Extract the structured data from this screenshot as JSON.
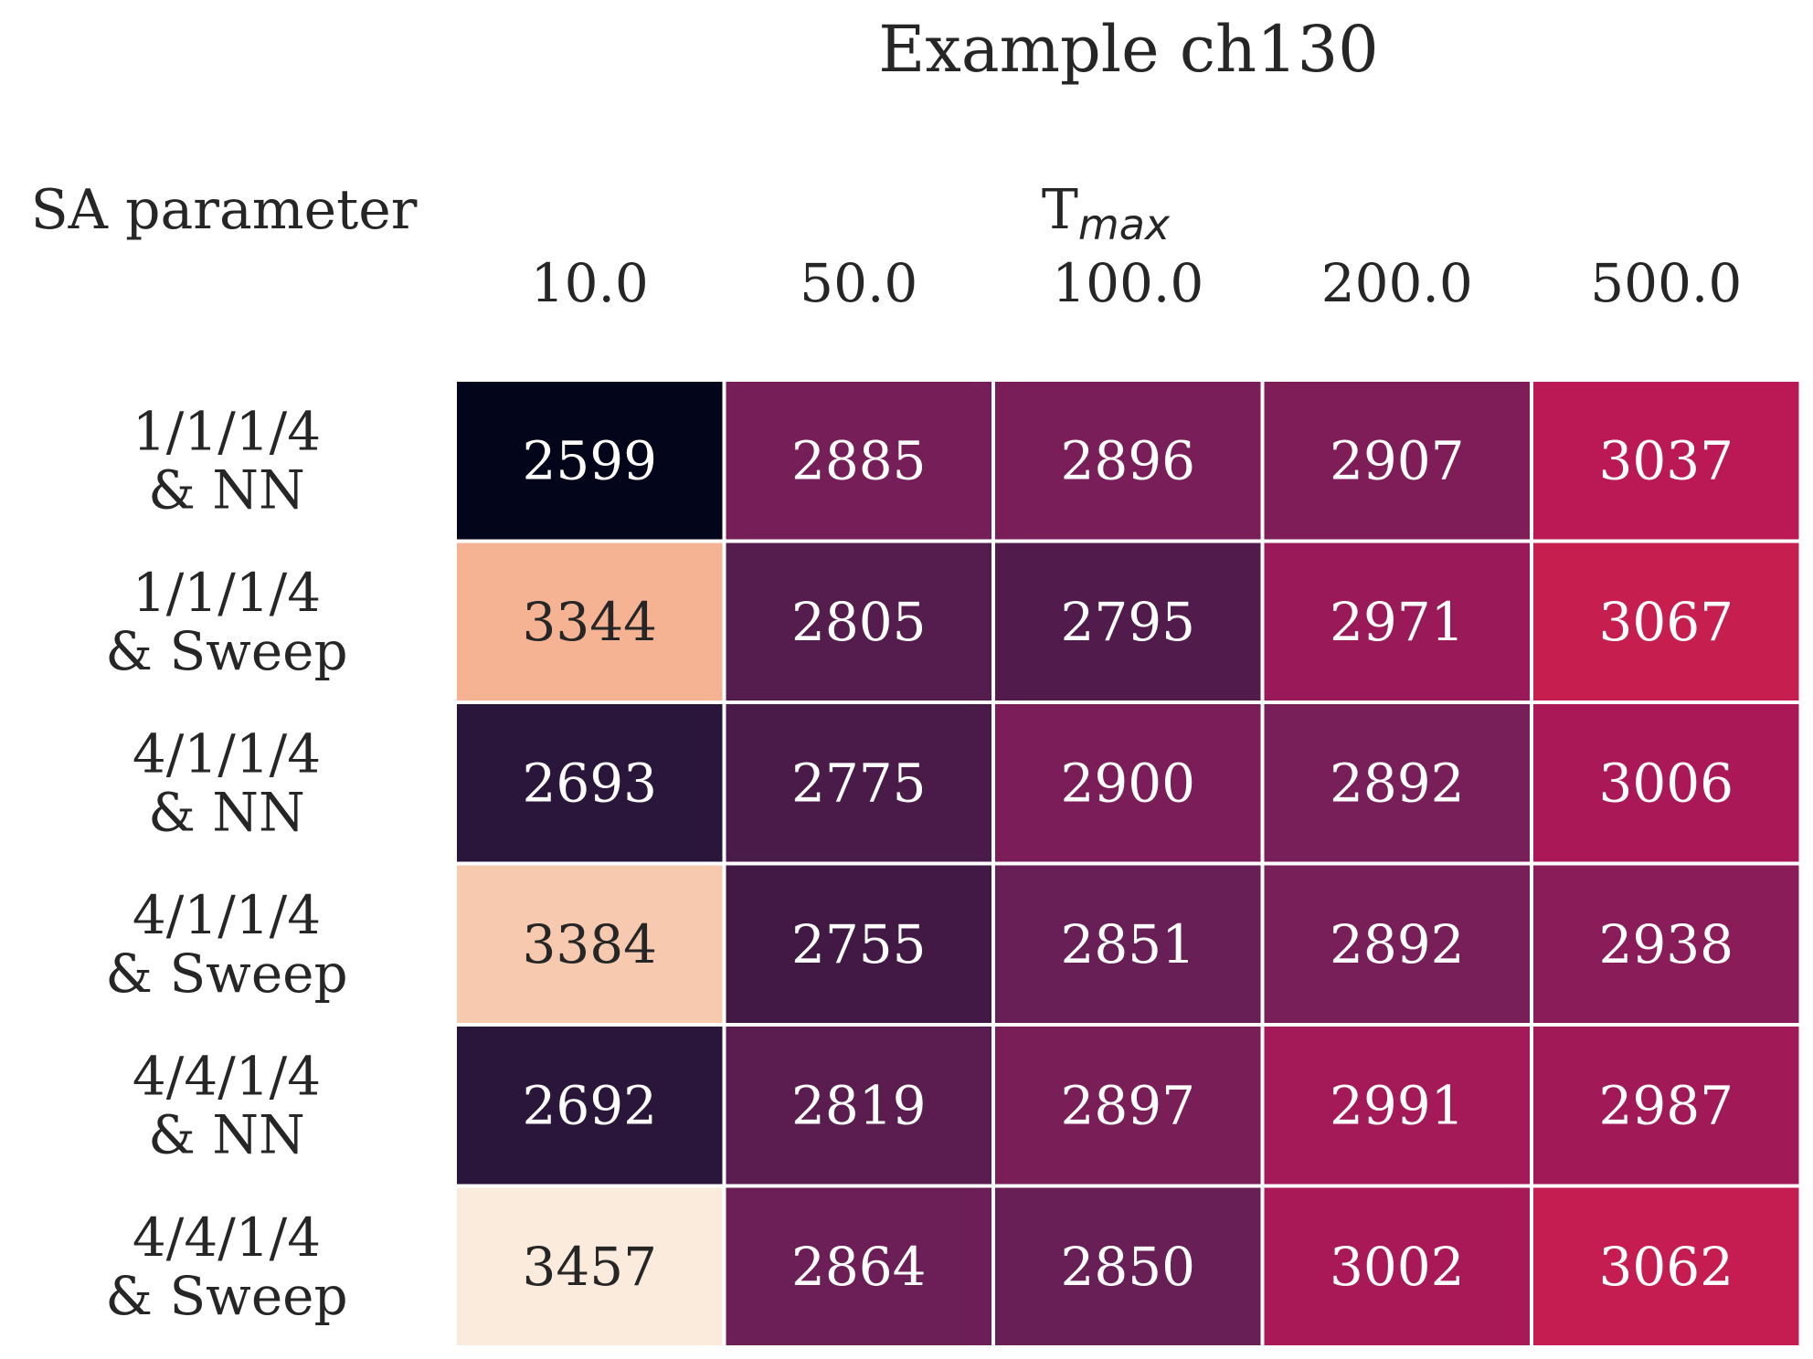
{
  "chart_data": {
    "type": "heatmap",
    "title": "Example ch130",
    "row_axis_label": "SA parameter",
    "col_axis_label": "T",
    "col_axis_label_sub": "max",
    "columns": [
      "10.0",
      "50.0",
      "100.0",
      "200.0",
      "500.0"
    ],
    "rows": [
      [
        "1/1/1/4",
        "& NN"
      ],
      [
        "1/1/1/4",
        "& Sweep"
      ],
      [
        "4/1/1/4",
        "& NN"
      ],
      [
        "4/1/1/4",
        "& Sweep"
      ],
      [
        "4/4/1/4",
        "& NN"
      ],
      [
        "4/4/1/4",
        "& Sweep"
      ]
    ],
    "values": [
      [
        2599,
        2885,
        2896,
        2907,
        3037
      ],
      [
        3344,
        2805,
        2795,
        2971,
        3067
      ],
      [
        2693,
        2775,
        2900,
        2892,
        3006
      ],
      [
        3384,
        2755,
        2851,
        2892,
        2938
      ],
      [
        2692,
        2819,
        2897,
        2991,
        2987
      ],
      [
        3457,
        2864,
        2850,
        3002,
        3062
      ]
    ],
    "colormap": "rocket",
    "value_range": [
      2599,
      3457
    ],
    "colorbar": false,
    "annotations": true
  }
}
